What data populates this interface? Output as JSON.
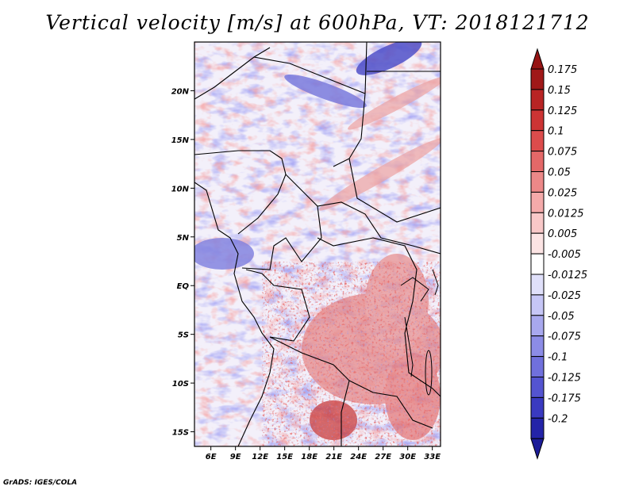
{
  "map": {
    "title": "Vertical velocity [m/s] at 600hPa, VT: 2018121712",
    "credit": "GrADS: IGES/COLA",
    "variable": "Vertical velocity",
    "units": "m/s",
    "level": "600hPa",
    "valid_time": "2018121712",
    "lon_range": [
      4,
      34
    ],
    "lat_range": [
      -16.5,
      25
    ],
    "lon_ticks": [
      {
        "value": 6,
        "label": "6E"
      },
      {
        "value": 9,
        "label": "9E"
      },
      {
        "value": 12,
        "label": "12E"
      },
      {
        "value": 15,
        "label": "15E"
      },
      {
        "value": 18,
        "label": "18E"
      },
      {
        "value": 21,
        "label": "21E"
      },
      {
        "value": 24,
        "label": "24E"
      },
      {
        "value": 27,
        "label": "27E"
      },
      {
        "value": 30,
        "label": "30E"
      },
      {
        "value": 33,
        "label": "33E"
      }
    ],
    "lat_ticks": [
      {
        "value": 20,
        "label": "20N"
      },
      {
        "value": 15,
        "label": "15N"
      },
      {
        "value": 10,
        "label": "10N"
      },
      {
        "value": 5,
        "label": "5N"
      },
      {
        "value": 0,
        "label": "EQ"
      },
      {
        "value": -5,
        "label": "5S"
      },
      {
        "value": -10,
        "label": "10S"
      },
      {
        "value": -15,
        "label": "15S"
      }
    ]
  },
  "colorbar": {
    "levels": [
      {
        "label": "0.175",
        "color": "#a01818"
      },
      {
        "label": "0.15",
        "color": "#b82424"
      },
      {
        "label": "0.125",
        "color": "#cc3434"
      },
      {
        "label": "0.1",
        "color": "#dc4c4c"
      },
      {
        "label": "0.075",
        "color": "#e46868"
      },
      {
        "label": "0.05",
        "color": "#ec8888"
      },
      {
        "label": "0.025",
        "color": "#f4aaaa"
      },
      {
        "label": "0.0125",
        "color": "#f8c8c8"
      },
      {
        "label": "0.005",
        "color": "#fce4e4"
      },
      {
        "label": "-0.005",
        "color": "#ffffff"
      },
      {
        "label": "-0.0125",
        "color": "#e0e0fa"
      },
      {
        "label": "-0.025",
        "color": "#c6c6f6"
      },
      {
        "label": "-0.05",
        "color": "#a8a8ee"
      },
      {
        "label": "-0.075",
        "color": "#8c8ce6"
      },
      {
        "label": "-0.1",
        "color": "#7070dc"
      },
      {
        "label": "-0.125",
        "color": "#5454d0"
      },
      {
        "label": "-0.175",
        "color": "#3a3ac0"
      },
      {
        "label": "-0.2",
        "color": "#2424a8"
      }
    ],
    "top_color": "#961414",
    "bottom_color": "#1c1c98"
  }
}
